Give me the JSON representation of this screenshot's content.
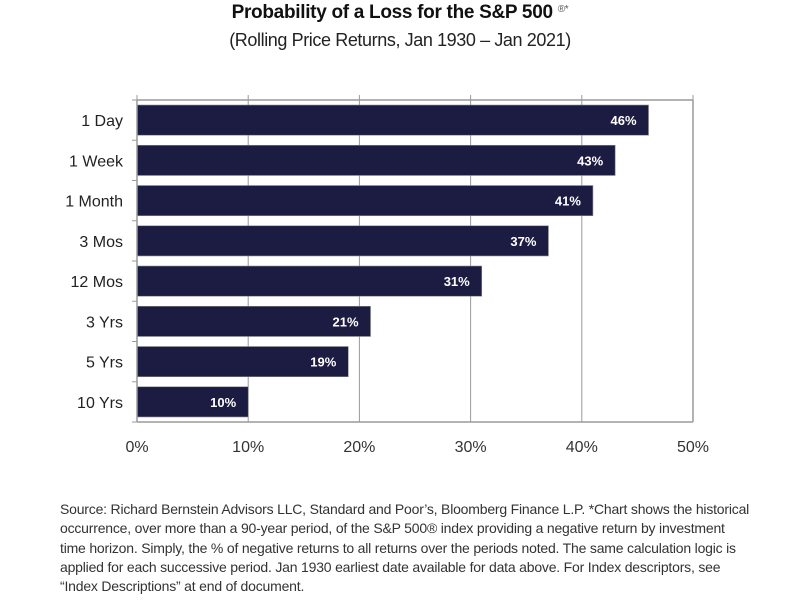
{
  "chart_data": {
    "type": "bar",
    "orientation": "horizontal",
    "title": "Probability of a Loss for the S&P 500",
    "title_suffix": "®*",
    "subtitle": "(Rolling Price Returns, Jan 1930 – Jan 2021)",
    "categories": [
      "1 Day",
      "1 Week",
      "1 Month",
      "3 Mos",
      "12 Mos",
      "3 Yrs",
      "5 Yrs",
      "10 Yrs"
    ],
    "values": [
      46,
      43,
      41,
      37,
      31,
      21,
      19,
      10
    ],
    "data_labels": [
      "46%",
      "43%",
      "41%",
      "37%",
      "31%",
      "21%",
      "19%",
      "10%"
    ],
    "xlabel": "",
    "ylabel": "",
    "xlim": [
      0,
      50
    ],
    "xticks": [
      0,
      10,
      20,
      30,
      40,
      50
    ],
    "xtick_labels": [
      "0%",
      "10%",
      "20%",
      "30%",
      "40%",
      "50%"
    ],
    "grid": true,
    "legend": "none",
    "bar_color": "#1c1c42"
  },
  "footnote": "Source: Richard Bernstein Advisors LLC, Standard and Poor’s, Bloomberg Finance L.P. *Chart shows the historical occurrence, over more than a 90-year period, of the S&P 500® index providing a negative return by investment time horizon.   Simply, the % of negative returns to all returns over the periods noted.  The same calculation logic is applied for each successive period. Jan 1930 earliest date available for data above. For Index descriptors, see “Index Descriptions” at end of document."
}
